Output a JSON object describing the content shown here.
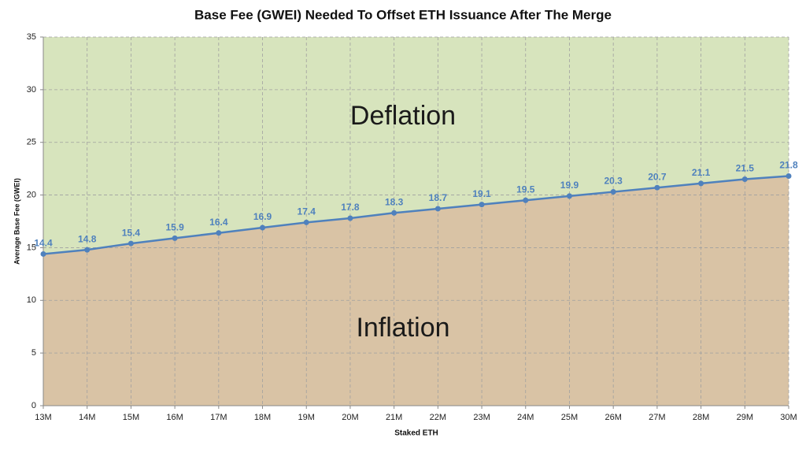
{
  "chart_data": {
    "type": "line",
    "title": "Base Fee (GWEI) Needed To Offset ETH Issuance After The Merge",
    "x_label": "Staked ETH",
    "y_label": "Average Base Fee (GWEI)",
    "annotations": [
      "Deflation",
      "Inflation"
    ],
    "categories": [
      "13M",
      "14M",
      "15M",
      "16M",
      "17M",
      "18M",
      "19M",
      "20M",
      "21M",
      "22M",
      "23M",
      "24M",
      "25M",
      "26M",
      "27M",
      "28M",
      "29M",
      "30M"
    ],
    "series": [
      {
        "color": "#4f81bd",
        "values": [
          14.4,
          14.8,
          15.4,
          15.9,
          16.4,
          16.9,
          17.4,
          17.8,
          18.3,
          18.7,
          19.1,
          19.5,
          19.9,
          20.3,
          20.7,
          21.1,
          21.5,
          21.8
        ]
      }
    ],
    "fill_above": "#d7e4bd",
    "fill_below": "#d9c3a5",
    "ylim": [
      0,
      35
    ],
    "yticks": [
      0,
      5,
      10,
      15,
      20,
      25,
      30,
      35
    ],
    "grid": true
  }
}
